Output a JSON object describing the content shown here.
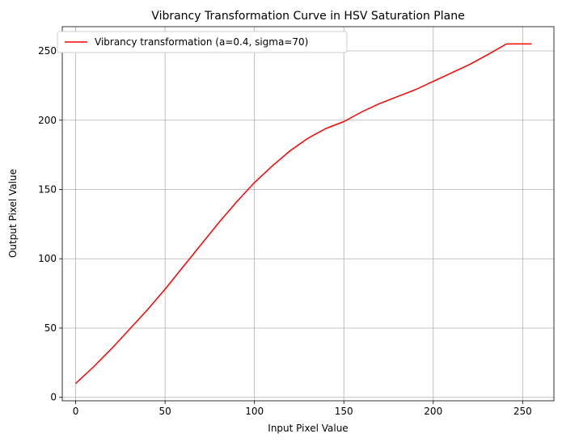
{
  "chart_data": {
    "type": "line",
    "title": "Vibrancy Transformation Curve in HSV Saturation Plane",
    "xlabel": "Input Pixel Value",
    "ylabel": "Output Pixel Value",
    "xlim": [
      -7.5,
      267.5
    ],
    "ylim": [
      -2.5,
      267.5
    ],
    "xticks": [
      0,
      50,
      100,
      150,
      200,
      250
    ],
    "yticks": [
      0,
      50,
      100,
      150,
      200,
      250
    ],
    "grid": true,
    "legend_position": "upper-left",
    "series": [
      {
        "name": "Vibrancy transformation (a=0.4, sigma=70)",
        "color": "#ff0000",
        "x": [
          0,
          10,
          20,
          30,
          40,
          50,
          60,
          70,
          80,
          90,
          100,
          110,
          120,
          130,
          140,
          150,
          160,
          170,
          180,
          190,
          200,
          210,
          220,
          230,
          241,
          248,
          255
        ],
        "y": [
          10,
          22,
          35,
          49,
          63,
          78,
          94,
          110,
          126,
          141,
          155,
          167,
          178,
          187,
          194,
          199,
          206,
          212,
          217,
          222,
          228,
          234,
          240,
          247,
          255,
          255,
          255
        ]
      }
    ]
  }
}
